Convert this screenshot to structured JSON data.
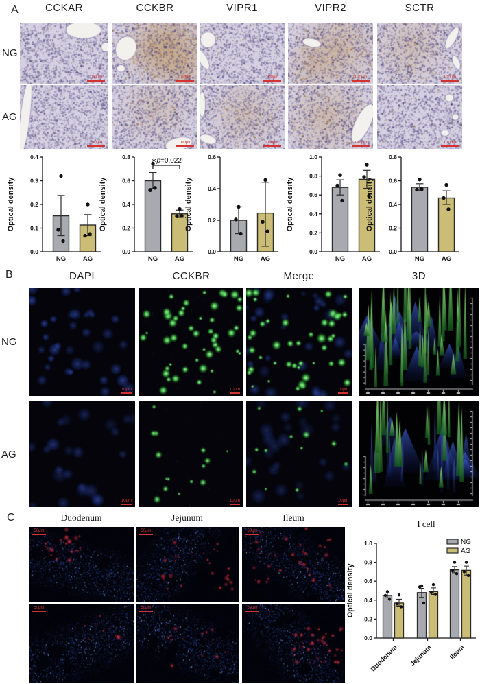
{
  "figure": {
    "panels": {
      "A": {
        "label": "A",
        "columns": [
          "CCKAR",
          "CCKBR",
          "VIPR1",
          "VIPR2",
          "SCTR"
        ],
        "row_labels": [
          "NG",
          "AG"
        ],
        "scale_label": "100μm"
      },
      "B": {
        "label": "B",
        "columns": [
          "DAPI",
          "CCKBR",
          "Merge",
          "3D"
        ],
        "row_labels": [
          "NG",
          "AG"
        ],
        "scale_label": "10μm"
      },
      "C": {
        "label": "C",
        "columns": [
          "Duodenum",
          "Jejunum",
          "Ileum"
        ],
        "scale_label": "50μm"
      }
    }
  },
  "colors": {
    "bar_gray": "#a9a9b0",
    "bar_khaki": "#cbbc76",
    "bar_stroke": "#2b2b2b",
    "axis": "#1a1a1a",
    "dot": "#111111",
    "scalebar_red": "#d33333"
  },
  "chart_data": [
    {
      "id": "cckar",
      "type": "bar",
      "ylabel": "Optical density",
      "categories": [
        "NG",
        "AG"
      ],
      "ylim": [
        0,
        0.4
      ],
      "ystep": 0.1,
      "bars": [
        {
          "group": "NG",
          "color": "gray",
          "mean": 0.152,
          "err_lo": 0.068,
          "err_hi": 0.238,
          "dots": [
            0.32,
            0.093,
            0.045
          ]
        },
        {
          "group": "AG",
          "color": "khaki",
          "mean": 0.113,
          "err_lo": 0.068,
          "err_hi": 0.157,
          "dots": [
            0.2,
            0.068,
            0.075
          ]
        }
      ]
    },
    {
      "id": "cckbr",
      "type": "bar",
      "ylabel": "Optical density",
      "categories": [
        "NG",
        "AG"
      ],
      "ylim": [
        0,
        0.8
      ],
      "ystep": 0.2,
      "sig": {
        "marker": "∗",
        "italic": "p",
        "text": "=0.022"
      },
      "bars": [
        {
          "group": "NG",
          "color": "gray",
          "mean": 0.6,
          "err_lo": 0.535,
          "err_hi": 0.67,
          "dots": [
            0.745,
            0.52,
            0.54
          ]
        },
        {
          "group": "AG",
          "color": "khaki",
          "mean": 0.32,
          "err_lo": 0.29,
          "err_hi": 0.352,
          "dots": [
            0.362,
            0.3,
            0.303
          ]
        }
      ]
    },
    {
      "id": "vipr1",
      "type": "bar",
      "ylabel": "Optical density",
      "categories": [
        "NG",
        "AG"
      ],
      "ylim": [
        0,
        0.6
      ],
      "ystep": 0.2,
      "bars": [
        {
          "group": "NG",
          "color": "gray",
          "mean": 0.2,
          "err_lo": 0.115,
          "err_hi": 0.285,
          "dots": [
            0.285,
            0.205,
            0.115
          ]
        },
        {
          "group": "AG",
          "color": "khaki",
          "mean": 0.245,
          "err_lo": 0.035,
          "err_hi": 0.44,
          "dots": [
            0.455,
            0.19,
            0.13
          ]
        }
      ]
    },
    {
      "id": "vipr2",
      "type": "bar",
      "ylabel": "Optical density",
      "categories": [
        "NG",
        "AG"
      ],
      "ylim": [
        0,
        1.0
      ],
      "ystep": 0.2,
      "bars": [
        {
          "group": "NG",
          "color": "gray",
          "mean": 0.68,
          "err_lo": 0.6,
          "err_hi": 0.76,
          "dots": [
            0.81,
            0.7,
            0.54
          ]
        },
        {
          "group": "AG",
          "color": "khaki",
          "mean": 0.765,
          "err_lo": 0.67,
          "err_hi": 0.86,
          "dots": [
            0.92,
            0.79,
            0.59
          ]
        }
      ]
    },
    {
      "id": "sctr",
      "type": "bar",
      "ylabel": "Optical density",
      "categories": [
        "NG",
        "AG"
      ],
      "ylim": [
        0,
        0.8
      ],
      "ystep": 0.2,
      "bars": [
        {
          "group": "NG",
          "color": "gray",
          "mean": 0.545,
          "err_lo": 0.515,
          "err_hi": 0.575,
          "dots": [
            0.61,
            0.525,
            0.53
          ]
        },
        {
          "group": "AG",
          "color": "khaki",
          "mean": 0.455,
          "err_lo": 0.4,
          "err_hi": 0.515,
          "dots": [
            0.565,
            0.455,
            0.36
          ]
        }
      ]
    },
    {
      "id": "icell",
      "type": "grouped_bar",
      "title": "I cell",
      "ylabel": "Optical density",
      "ylim": [
        0,
        1.0
      ],
      "ystep": 0.2,
      "categories": [
        "Duodenum",
        "Jejunum",
        "Ileum"
      ],
      "legend": {
        "position": "top-right",
        "items": [
          "NG",
          "AG"
        ]
      },
      "series": [
        {
          "name": "NG",
          "color": "gray",
          "means": [
            0.45,
            0.48,
            0.72
          ],
          "err_lo": [
            0.425,
            0.43,
            0.69
          ],
          "err_hi": [
            0.475,
            0.525,
            0.755
          ],
          "dots": [
            [
              0.49,
              0.45,
              0.41
            ],
            [
              0.55,
              0.54,
              0.37
            ],
            [
              0.8,
              0.71,
              0.68
            ]
          ]
        },
        {
          "name": "AG",
          "color": "khaki",
          "means": [
            0.37,
            0.49,
            0.715
          ],
          "err_lo": [
            0.33,
            0.46,
            0.665
          ],
          "err_hi": [
            0.41,
            0.53,
            0.76
          ],
          "dots": [
            [
              0.455,
              0.36,
              0.33
            ],
            [
              0.565,
              0.48,
              0.46
            ],
            [
              0.8,
              0.7,
              0.66
            ]
          ]
        }
      ]
    }
  ]
}
